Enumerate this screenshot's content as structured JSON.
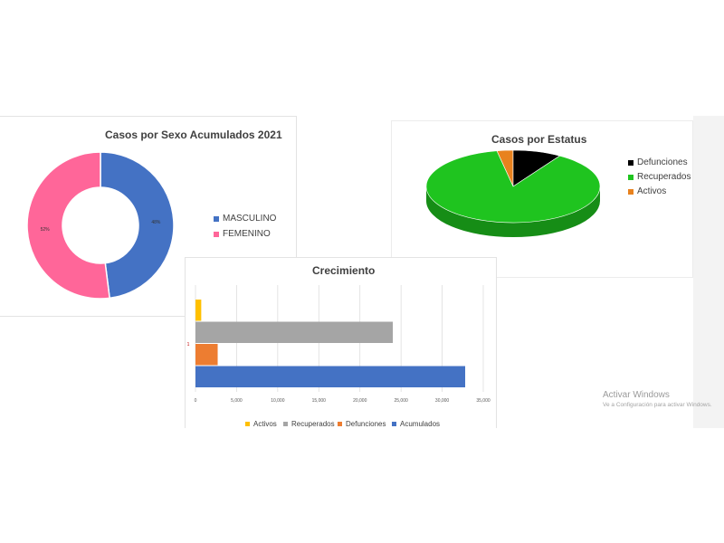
{
  "charts": {
    "donut": {
      "title": "Casos por Sexo Acumulados 2021",
      "legend": [
        {
          "label": "MASCULINO",
          "color": "#4472c4"
        },
        {
          "label": "FEMENINO",
          "color": "#ff6699"
        }
      ]
    },
    "pie": {
      "title": "Casos por Estatus",
      "legend": [
        {
          "label": "Defunciones",
          "color": "#000000"
        },
        {
          "label": "Recuperados",
          "color": "#1fc41f"
        },
        {
          "label": "Activos",
          "color": "#e8821e"
        }
      ]
    },
    "bar": {
      "title": "Crecimiento",
      "category_label": "1",
      "ticks": [
        "0",
        "5,000",
        "10,000",
        "15,000",
        "20,000",
        "25,000",
        "30,000",
        "35,000"
      ],
      "legend": [
        {
          "label": "Activos",
          "color": "#ffc000"
        },
        {
          "label": "Recuperados",
          "color": "#a5a5a5"
        },
        {
          "label": "Defunciones",
          "color": "#ed7d31"
        },
        {
          "label": "Acumulados",
          "color": "#4472c4"
        }
      ]
    }
  },
  "chart_data": [
    {
      "type": "pie",
      "variant": "donut",
      "title": "Casos por Sexo Acumulados 2021",
      "categories": [
        "MASCULINO",
        "FEMENINO"
      ],
      "values": [
        48,
        52
      ],
      "data_labels": [
        "48%",
        "52%"
      ],
      "colors": [
        "#4472c4",
        "#ff6699"
      ],
      "legend_position": "right"
    },
    {
      "type": "pie",
      "variant": "3d",
      "title": "Casos por Estatus",
      "categories": [
        "Defunciones",
        "Recuperados",
        "Activos"
      ],
      "values": [
        9,
        88,
        3
      ],
      "colors": [
        "#000000",
        "#1fc41f",
        "#e8821e"
      ],
      "legend_position": "right"
    },
    {
      "type": "bar",
      "orientation": "horizontal",
      "title": "Crecimiento",
      "categories": [
        "1"
      ],
      "series": [
        {
          "name": "Activos",
          "values": [
            700
          ],
          "color": "#ffc000"
        },
        {
          "name": "Recuperados",
          "values": [
            24000
          ],
          "color": "#a5a5a5"
        },
        {
          "name": "Defunciones",
          "values": [
            2700
          ],
          "color": "#ed7d31"
        },
        {
          "name": "Acumulados",
          "values": [
            32800
          ],
          "color": "#4472c4"
        }
      ],
      "xlim": [
        0,
        35000
      ],
      "grid": true,
      "legend_position": "bottom"
    }
  ],
  "watermark": {
    "line1": "Activar Windows",
    "line2": "Ve a Configuración para activar Windows."
  }
}
